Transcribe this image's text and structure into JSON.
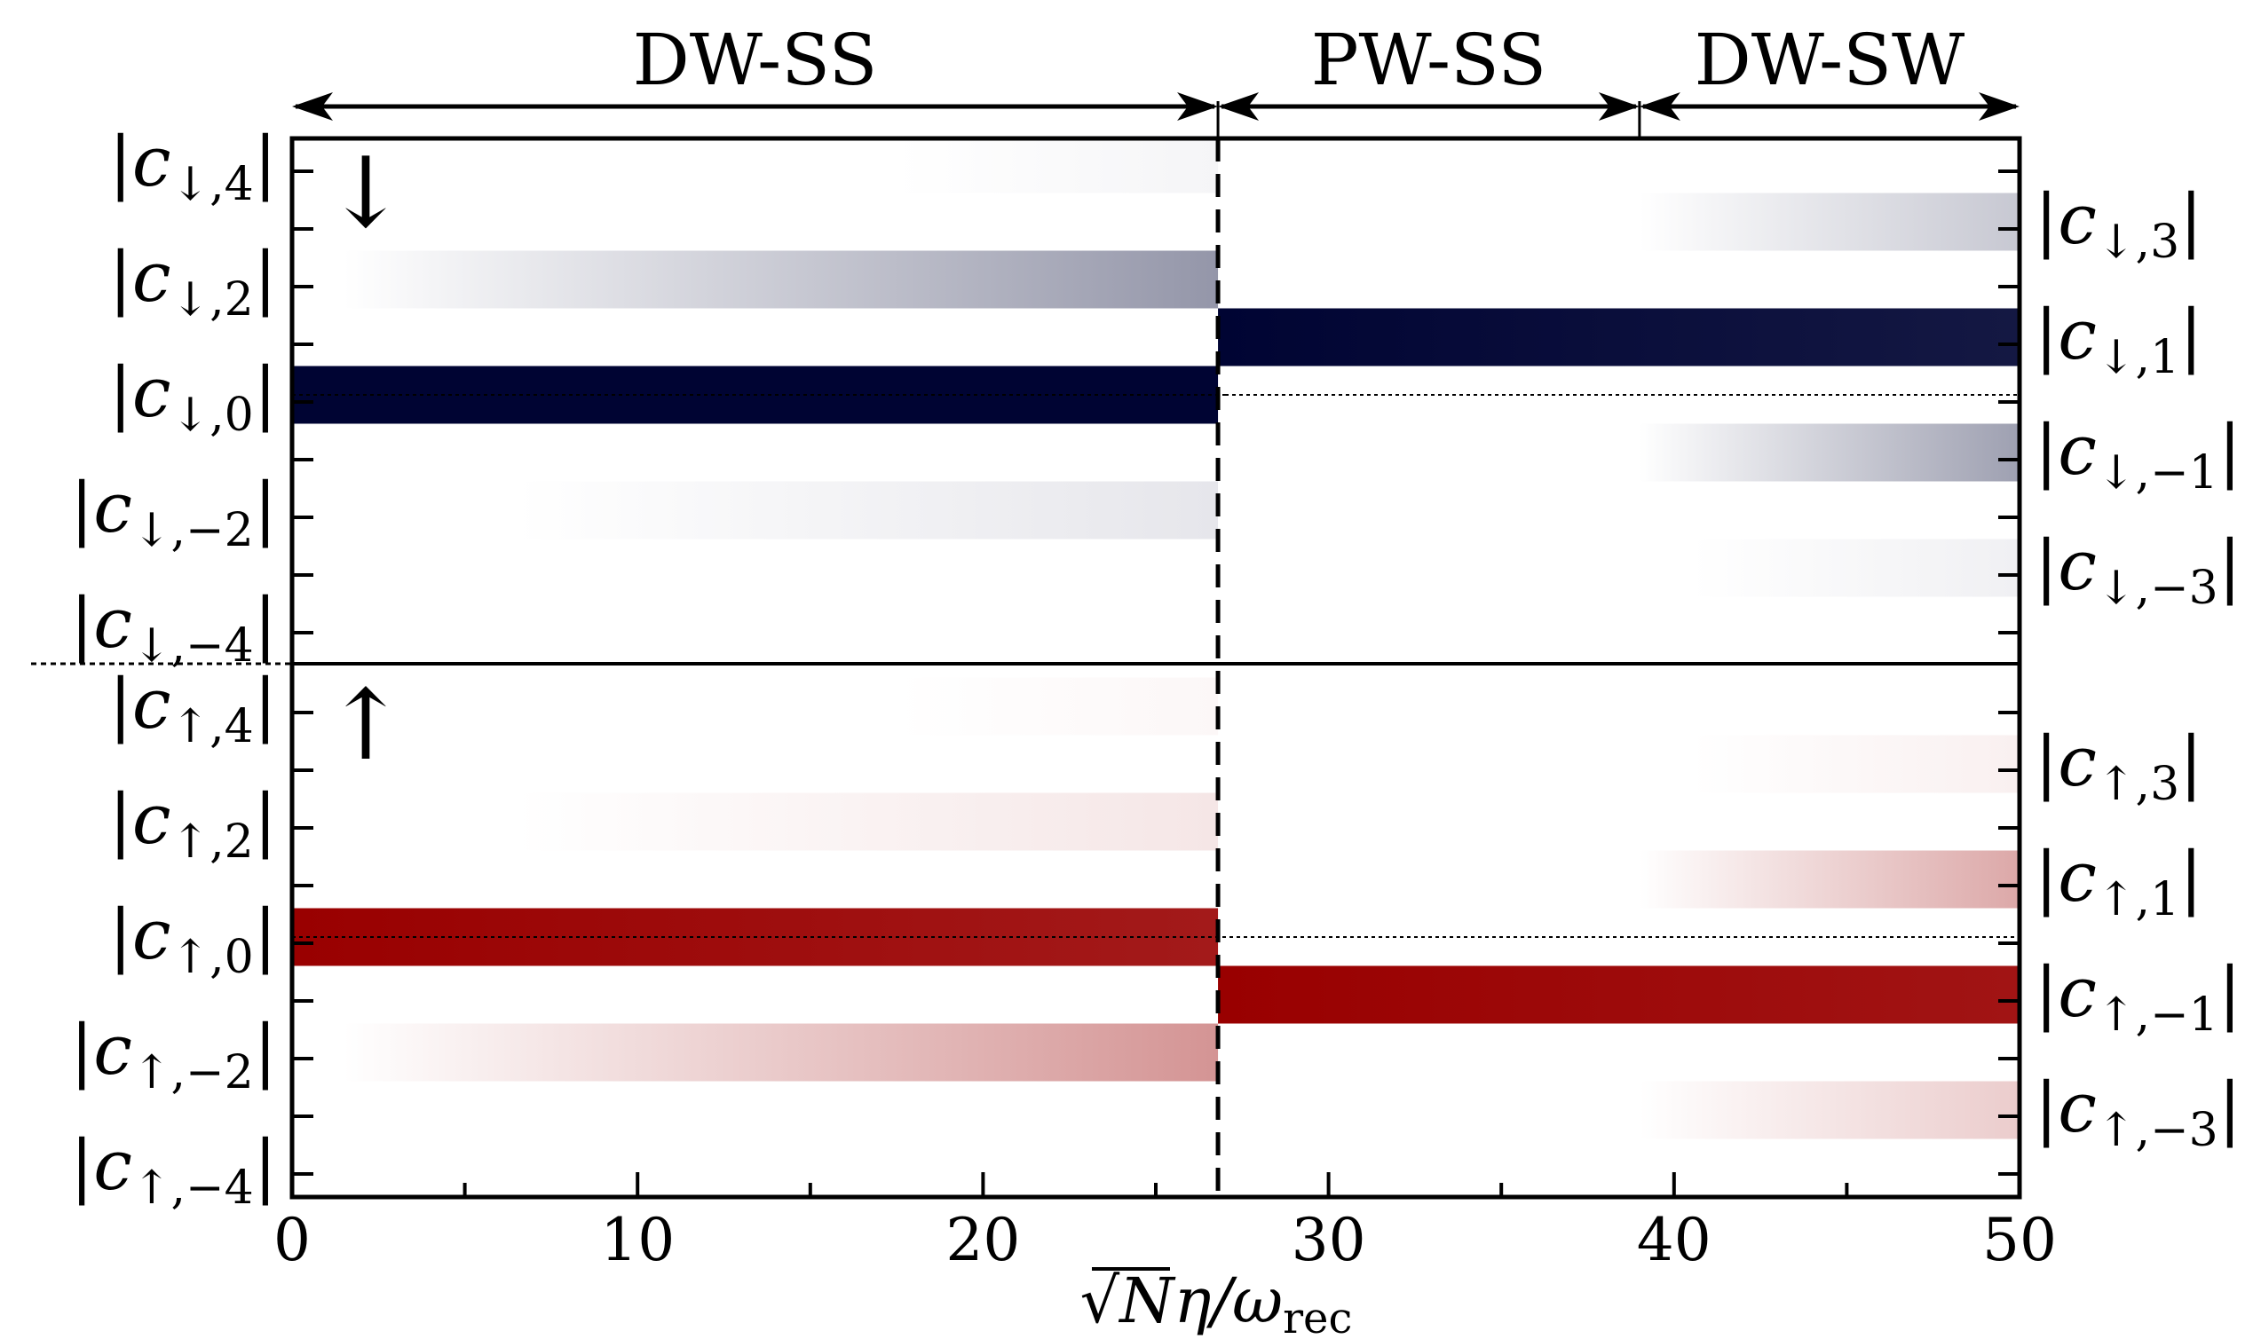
{
  "chart_data": {
    "type": "heatmap",
    "title": "",
    "xlabel": "√Nη/ω_rec",
    "xlabel_parts": {
      "radical": "√",
      "main": "Nη/ω",
      "sub": "rec"
    },
    "xlim": [
      0,
      50
    ],
    "x_ticks": [
      0,
      10,
      20,
      30,
      40,
      50
    ],
    "x_tick_labels": [
      "0",
      "10",
      "20",
      "30",
      "40",
      "50"
    ],
    "phase_boundaries": [
      26.8,
      39.0
    ],
    "phases": [
      {
        "name": "DW-SS",
        "x_start": 0,
        "x_end": 26.8
      },
      {
        "name": "PW-SS",
        "x_start": 26.8,
        "x_end": 39.0
      },
      {
        "name": "DW-SW",
        "x_start": 39.0,
        "x_end": 50
      }
    ],
    "panels": [
      {
        "name": "spin-down",
        "symbol": "↓",
        "color": "#000433",
        "left_labels": [
          {
            "text": "|c↓,4|",
            "base": "c",
            "sub": "↓,4",
            "index": 4
          },
          {
            "text": "|c↓,2|",
            "base": "c",
            "sub": "↓,2",
            "index": 2
          },
          {
            "text": "|c↓,0|",
            "base": "c",
            "sub": "↓,0",
            "index": 0
          },
          {
            "text": "|c↓,−2|",
            "base": "c",
            "sub": "↓,−2",
            "index": -2
          },
          {
            "text": "|c↓,−4|",
            "base": "c",
            "sub": "↓,−4",
            "index": -4
          }
        ],
        "right_labels": [
          {
            "text": "|c↓,3|",
            "base": "c",
            "sub": "↓,3",
            "index": 3
          },
          {
            "text": "|c↓,1|",
            "base": "c",
            "sub": "↓,1",
            "index": 1
          },
          {
            "text": "|c↓,−1|",
            "base": "c",
            "sub": "↓,−1",
            "index": -1
          },
          {
            "text": "|c↓,−3|",
            "base": "c",
            "sub": "↓,−3",
            "index": -3
          }
        ],
        "bands": [
          {
            "index": 4,
            "x_start": 17.5,
            "x_end": 26.8,
            "amp_start": 0.0,
            "amp_end": 0.04
          },
          {
            "index": 2,
            "x_start": 1.5,
            "x_end": 26.8,
            "amp_start": 0.0,
            "amp_end": 0.42
          },
          {
            "index": 0,
            "x_start": 0,
            "x_end": 26.8,
            "amp_start": 1.0,
            "amp_end": 1.0
          },
          {
            "index": -2,
            "x_start": 6.5,
            "x_end": 26.8,
            "amp_start": 0.0,
            "amp_end": 0.1
          },
          {
            "index": 3,
            "x_start": 39.0,
            "x_end": 50,
            "amp_start": 0.0,
            "amp_end": 0.22
          },
          {
            "index": 1,
            "x_start": 26.8,
            "x_end": 50,
            "amp_start": 1.0,
            "amp_end": 0.92
          },
          {
            "index": -1,
            "x_start": 39.0,
            "x_end": 50,
            "amp_start": 0.0,
            "amp_end": 0.38
          },
          {
            "index": -3,
            "x_start": 40.5,
            "x_end": 50,
            "amp_start": 0.0,
            "amp_end": 0.06
          }
        ]
      },
      {
        "name": "spin-up",
        "symbol": "↑",
        "color": "#990000",
        "left_labels": [
          {
            "text": "|c↑,4|",
            "base": "c",
            "sub": "↑,4",
            "index": 4
          },
          {
            "text": "|c↑,2|",
            "base": "c",
            "sub": "↑,2",
            "index": 2
          },
          {
            "text": "|c↑,0|",
            "base": "c",
            "sub": "↑,0",
            "index": 0
          },
          {
            "text": "|c↑,−2|",
            "base": "c",
            "sub": "↑,−2",
            "index": -2
          },
          {
            "text": "|c↑,−4|",
            "base": "c",
            "sub": "↑,−4",
            "index": -4
          }
        ],
        "right_labels": [
          {
            "text": "|c↑,3|",
            "base": "c",
            "sub": "↑,3",
            "index": 3
          },
          {
            "text": "|c↑,1|",
            "base": "c",
            "sub": "↑,1",
            "index": 1
          },
          {
            "text": "|c↑,−1|",
            "base": "c",
            "sub": "↑,−1",
            "index": -1
          },
          {
            "text": "|c↑,−3|",
            "base": "c",
            "sub": "↑,−3",
            "index": -3
          }
        ],
        "bands": [
          {
            "index": 4,
            "x_start": 17.5,
            "x_end": 26.8,
            "amp_start": 0.0,
            "amp_end": 0.03
          },
          {
            "index": 2,
            "x_start": 6.5,
            "x_end": 26.8,
            "amp_start": 0.0,
            "amp_end": 0.1
          },
          {
            "index": 0,
            "x_start": 0,
            "x_end": 26.8,
            "amp_start": 1.0,
            "amp_end": 0.9
          },
          {
            "index": -2,
            "x_start": 1.5,
            "x_end": 26.8,
            "amp_start": 0.0,
            "amp_end": 0.42
          },
          {
            "index": 3,
            "x_start": 40.5,
            "x_end": 50,
            "amp_start": 0.0,
            "amp_end": 0.06
          },
          {
            "index": 1,
            "x_start": 39.0,
            "x_end": 50,
            "amp_start": 0.0,
            "amp_end": 0.34
          },
          {
            "index": -1,
            "x_start": 26.8,
            "x_end": 50,
            "amp_start": 1.0,
            "amp_end": 0.92
          },
          {
            "index": -3,
            "x_start": 39.0,
            "x_end": 50,
            "amp_start": 0.0,
            "amp_end": 0.2
          }
        ]
      }
    ]
  }
}
